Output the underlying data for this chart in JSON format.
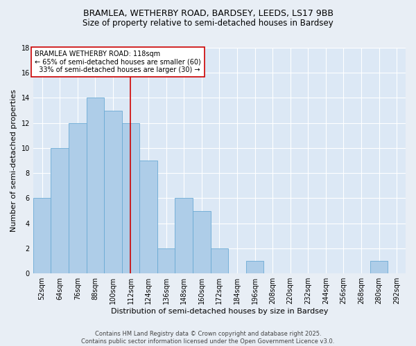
{
  "title1": "BRAMLEA, WETHERBY ROAD, BARDSEY, LEEDS, LS17 9BB",
  "title2": "Size of property relative to semi-detached houses in Bardsey",
  "xlabel": "Distribution of semi-detached houses by size in Bardsey",
  "ylabel": "Number of semi-detached properties",
  "bin_labels": [
    "52sqm",
    "64sqm",
    "76sqm",
    "88sqm",
    "100sqm",
    "112sqm",
    "124sqm",
    "136sqm",
    "148sqm",
    "160sqm",
    "172sqm",
    "184sqm",
    "196sqm",
    "208sqm",
    "220sqm",
    "232sqm",
    "244sqm",
    "256sqm",
    "268sqm",
    "280sqm",
    "292sqm"
  ],
  "bin_edges": [
    52,
    64,
    76,
    88,
    100,
    112,
    124,
    136,
    148,
    160,
    172,
    184,
    196,
    208,
    220,
    232,
    244,
    256,
    268,
    280,
    292
  ],
  "counts": [
    6,
    10,
    12,
    14,
    13,
    12,
    9,
    2,
    6,
    5,
    2,
    0,
    1,
    0,
    0,
    0,
    0,
    0,
    0,
    1
  ],
  "bar_color": "#aecde8",
  "bar_edge_color": "#6aaad4",
  "property_value": 118,
  "vline_color": "#cc0000",
  "annotation_text": "BRAMLEA WETHERBY ROAD: 118sqm\n← 65% of semi-detached houses are smaller (60)\n  33% of semi-detached houses are larger (30) →",
  "annotation_box_color": "#ffffff",
  "annotation_box_edge_color": "#cc0000",
  "ylim": [
    0,
    18
  ],
  "yticks": [
    0,
    2,
    4,
    6,
    8,
    10,
    12,
    14,
    16,
    18
  ],
  "background_color": "#e8eef5",
  "plot_background_color": "#dce8f5",
  "footer_text": "Contains HM Land Registry data © Crown copyright and database right 2025.\nContains public sector information licensed under the Open Government Licence v3.0.",
  "title_fontsize": 9,
  "title2_fontsize": 8.5,
  "axis_label_fontsize": 8,
  "tick_fontsize": 7,
  "annotation_fontsize": 7,
  "footer_fontsize": 6
}
